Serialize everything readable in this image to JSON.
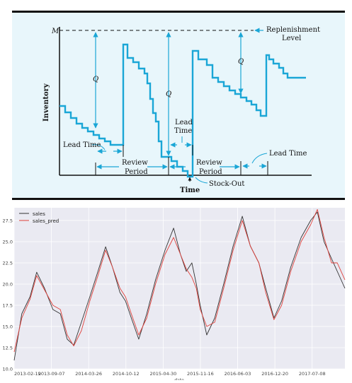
{
  "figure1": {
    "labels": {
      "m": "M",
      "replenishment": [
        "Replenishment",
        "Level"
      ],
      "q": "Q",
      "inventory": "Inventory",
      "time": "Time",
      "lead_time": "Lead Time",
      "lead_time_mid": [
        "Lead",
        "Time"
      ],
      "review_period": [
        "Review",
        "Period"
      ],
      "stock_out": "Stock-Out"
    },
    "colors": {
      "line": "#1aa6d6",
      "panel": "#e8f6fb",
      "ink": "#111111"
    }
  },
  "chart_data": {
    "type": "line",
    "title": "",
    "xlabel": "date",
    "ylabel": "",
    "ylim": [
      10.0,
      29.0
    ],
    "yticks": [
      "10.0",
      "12.5",
      "15.0",
      "17.5",
      "20.0",
      "22.5",
      "25.0",
      "27.5"
    ],
    "xticks": [
      "2013-02-19",
      "2013-09-07",
      "2014-03-26",
      "2014-10-12",
      "2015-04-30",
      "2015-11-16",
      "2016-06-03",
      "2016-12-20",
      "2017-07-08"
    ],
    "legend": "top-left",
    "grid": true,
    "series": [
      {
        "name": "sales",
        "color": "#333333",
        "points": [
          [
            "2013-02-19",
            11.0
          ],
          [
            "2013-04-01",
            16.5
          ],
          [
            "2013-05-15",
            18.5
          ],
          [
            "2013-06-20",
            21.4
          ],
          [
            "2013-08-01",
            19.5
          ],
          [
            "2013-09-15",
            17.0
          ],
          [
            "2013-10-25",
            16.5
          ],
          [
            "2013-12-01",
            13.5
          ],
          [
            "2014-01-05",
            12.8
          ],
          [
            "2014-02-15",
            15.5
          ],
          [
            "2014-04-01",
            18.5
          ],
          [
            "2014-05-15",
            21.5
          ],
          [
            "2014-06-25",
            24.4
          ],
          [
            "2014-08-01",
            22.0
          ],
          [
            "2014-09-10",
            19.0
          ],
          [
            "2014-10-10",
            18.0
          ],
          [
            "2014-11-10",
            16.0
          ],
          [
            "2014-12-20",
            13.5
          ],
          [
            "2015-02-01",
            16.5
          ],
          [
            "2015-03-20",
            20.5
          ],
          [
            "2015-05-10",
            24.0
          ],
          [
            "2015-06-25",
            26.6
          ],
          [
            "2015-08-01",
            23.5
          ],
          [
            "2015-09-01",
            21.5
          ],
          [
            "2015-10-01",
            22.5
          ],
          [
            "2015-10-25",
            20.0
          ],
          [
            "2015-11-15",
            17.5
          ],
          [
            "2015-12-20",
            14.0
          ],
          [
            "2016-02-01",
            16.0
          ],
          [
            "2016-03-20",
            20.0
          ],
          [
            "2016-05-10",
            24.5
          ],
          [
            "2016-06-28",
            28.0
          ],
          [
            "2016-08-10",
            24.5
          ],
          [
            "2016-09-25",
            22.5
          ],
          [
            "2016-11-01",
            19.5
          ],
          [
            "2016-12-15",
            16.0
          ],
          [
            "2017-01-25",
            18.0
          ],
          [
            "2017-03-15",
            22.0
          ],
          [
            "2017-05-10",
            25.5
          ],
          [
            "2017-06-30",
            27.5
          ],
          [
            "2017-08-05",
            28.5
          ],
          [
            "2017-09-10",
            25.0
          ],
          [
            "2017-10-20",
            23.0
          ],
          [
            "2017-11-20",
            21.5
          ],
          [
            "2017-12-31",
            19.5
          ]
        ]
      },
      {
        "name": "sales_pred",
        "color": "#e0413b",
        "points": [
          [
            "2013-02-19",
            12.0
          ],
          [
            "2013-04-01",
            16.0
          ],
          [
            "2013-05-15",
            18.2
          ],
          [
            "2013-06-20",
            21.0
          ],
          [
            "2013-08-01",
            19.3
          ],
          [
            "2013-09-15",
            17.5
          ],
          [
            "2013-10-25",
            17.0
          ],
          [
            "2013-12-01",
            14.0
          ],
          [
            "2014-01-05",
            12.7
          ],
          [
            "2014-02-15",
            14.5
          ],
          [
            "2014-04-01",
            18.0
          ],
          [
            "2014-05-15",
            21.0
          ],
          [
            "2014-06-25",
            24.0
          ],
          [
            "2014-08-01",
            22.0
          ],
          [
            "2014-09-10",
            19.5
          ],
          [
            "2014-10-10",
            18.5
          ],
          [
            "2014-11-10",
            16.5
          ],
          [
            "2014-12-20",
            14.0
          ],
          [
            "2015-02-01",
            16.0
          ],
          [
            "2015-03-20",
            20.0
          ],
          [
            "2015-05-10",
            23.5
          ],
          [
            "2015-06-25",
            25.5
          ],
          [
            "2015-08-01",
            23.5
          ],
          [
            "2015-09-01",
            21.8
          ],
          [
            "2015-10-01",
            20.8
          ],
          [
            "2015-10-25",
            19.5
          ],
          [
            "2015-11-15",
            17.0
          ],
          [
            "2015-12-20",
            15.0
          ],
          [
            "2016-02-01",
            15.5
          ],
          [
            "2016-03-20",
            19.5
          ],
          [
            "2016-05-10",
            24.0
          ],
          [
            "2016-06-28",
            27.5
          ],
          [
            "2016-08-10",
            24.5
          ],
          [
            "2016-09-25",
            22.5
          ],
          [
            "2016-11-01",
            19.0
          ],
          [
            "2016-12-15",
            15.8
          ],
          [
            "2017-01-25",
            17.5
          ],
          [
            "2017-03-15",
            21.5
          ],
          [
            "2017-05-10",
            25.0
          ],
          [
            "2017-06-30",
            27.0
          ],
          [
            "2017-08-05",
            28.8
          ],
          [
            "2017-09-10",
            25.5
          ],
          [
            "2017-10-20",
            22.5
          ],
          [
            "2017-11-20",
            22.5
          ],
          [
            "2017-12-31",
            20.5
          ]
        ]
      }
    ]
  }
}
